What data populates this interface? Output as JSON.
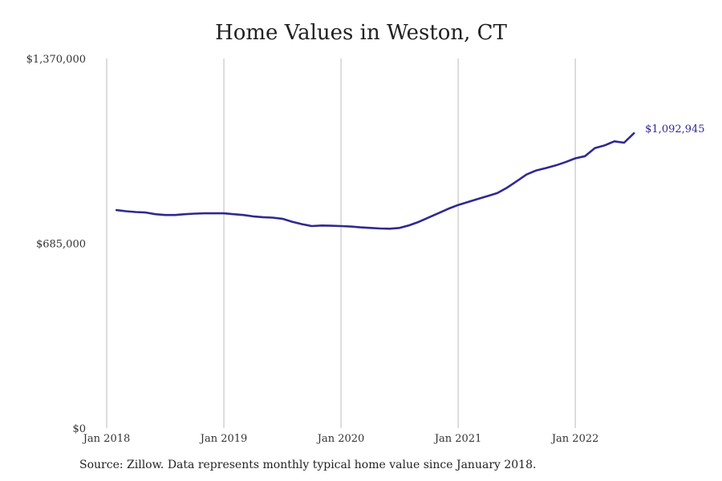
{
  "chart_data": {
    "type": "line",
    "title": "Home Values in Weston, CT",
    "source": "Source: Zillow. Data represents monthly typical home value since January 2018.",
    "line_color": "#2e2a8f",
    "grid_color": "#bbbbbb",
    "ylim": [
      0,
      1370000
    ],
    "y_ticks": [
      {
        "value": 0,
        "label": "$0"
      },
      {
        "value": 685000,
        "label": "$685,000"
      },
      {
        "value": 1370000,
        "label": "$1,370,000"
      }
    ],
    "xlim": [
      "2018-01",
      "2022-12"
    ],
    "x_ticks": [
      {
        "date": "2018-01",
        "label": "Jan 2018"
      },
      {
        "date": "2019-01",
        "label": "Jan 2019"
      },
      {
        "date": "2020-01",
        "label": "Jan 2020"
      },
      {
        "date": "2021-01",
        "label": "Jan 2021"
      },
      {
        "date": "2022-01",
        "label": "Jan 2022"
      }
    ],
    "end_label": "$1,092,945",
    "series": [
      {
        "x": [
          "2018-02",
          "2018-03",
          "2018-04",
          "2018-05",
          "2018-06",
          "2018-07",
          "2018-08",
          "2018-09",
          "2018-10",
          "2018-11",
          "2018-12",
          "2019-01",
          "2019-02",
          "2019-03",
          "2019-04",
          "2019-05",
          "2019-06",
          "2019-07",
          "2019-08",
          "2019-09",
          "2019-10",
          "2019-11",
          "2019-12",
          "2020-01",
          "2020-02",
          "2020-03",
          "2020-04",
          "2020-05",
          "2020-06",
          "2020-07",
          "2020-08",
          "2020-09",
          "2020-10",
          "2020-11",
          "2020-12",
          "2021-01",
          "2021-02",
          "2021-03",
          "2021-04",
          "2021-05",
          "2021-06",
          "2021-07",
          "2021-08",
          "2021-09",
          "2021-10",
          "2021-11",
          "2021-12",
          "2022-01",
          "2022-02",
          "2022-03",
          "2022-04",
          "2022-05",
          "2022-06",
          "2022-07"
        ],
        "values": [
          808000,
          804000,
          801000,
          799000,
          793000,
          790000,
          790000,
          793000,
          795000,
          796000,
          796000,
          796000,
          793000,
          790000,
          785000,
          782000,
          780000,
          776000,
          765000,
          756000,
          749000,
          751000,
          750000,
          749000,
          747000,
          744000,
          742000,
          740000,
          739000,
          742000,
          752000,
          765000,
          781000,
          797000,
          813000,
          827000,
          838000,
          849000,
          860000,
          871000,
          891000,
          915000,
          940000,
          955000,
          964000,
          974000,
          986000,
          1000000,
          1008000,
          1038000,
          1048000,
          1063000,
          1058000,
          1092945
        ]
      }
    ]
  }
}
